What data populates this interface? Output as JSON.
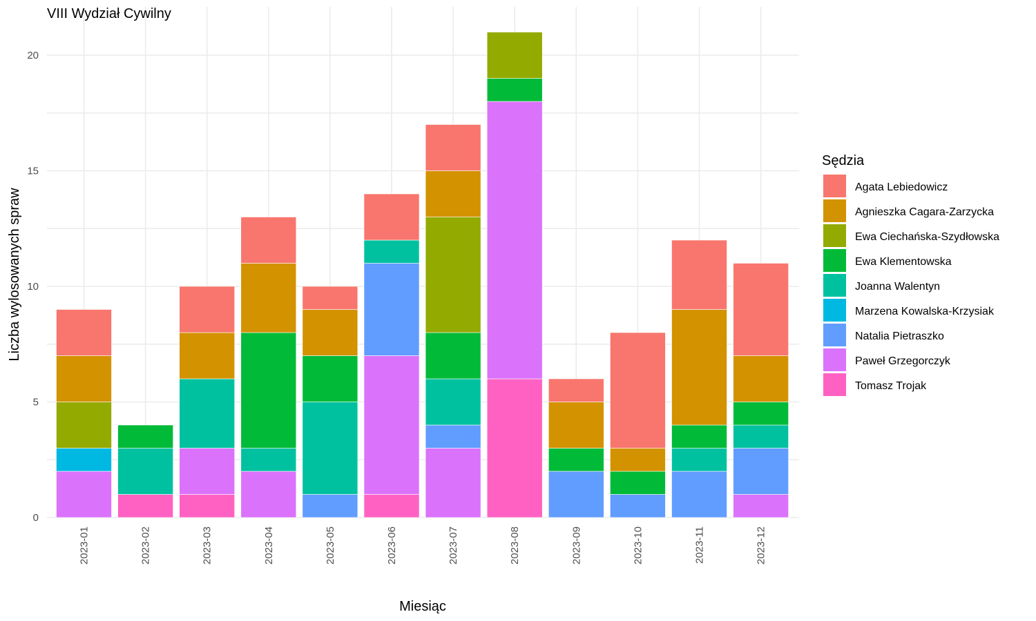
{
  "chart_data": {
    "type": "bar",
    "stacked": true,
    "title": "VIII Wydział Cywilny",
    "xlabel": "Miesiąc",
    "ylabel": "Liczba wylosowanych spraw",
    "ylim": [
      0,
      21
    ],
    "yticks": [
      0,
      5,
      10,
      15,
      20
    ],
    "grid": true,
    "legend": {
      "title": "Sędzia",
      "position": "right"
    },
    "categories": [
      "2023-01",
      "2023-02",
      "2023-03",
      "2023-04",
      "2023-05",
      "2023-06",
      "2023-07",
      "2023-08",
      "2023-09",
      "2023-10",
      "2023-11",
      "2023-12"
    ],
    "series": [
      {
        "name": "Agata Lebiedowicz",
        "color": "#F8766D",
        "values": [
          2,
          0,
          2,
          2,
          1,
          2,
          2,
          0,
          1,
          5,
          3,
          4
        ]
      },
      {
        "name": "Agnieszka Cagara-Zarzycka",
        "color": "#D39200",
        "values": [
          2,
          0,
          2,
          3,
          2,
          0,
          2,
          0,
          2,
          1,
          5,
          2
        ]
      },
      {
        "name": "Ewa Ciechańska-Szydłowska",
        "color": "#93AA00",
        "values": [
          2,
          0,
          0,
          0,
          0,
          0,
          5,
          2,
          0,
          0,
          0,
          0
        ]
      },
      {
        "name": "Ewa Klementowska",
        "color": "#00BA38",
        "values": [
          0,
          1,
          0,
          5,
          2,
          0,
          2,
          1,
          1,
          1,
          1,
          1
        ]
      },
      {
        "name": "Joanna Walentyn",
        "color": "#00C19F",
        "values": [
          0,
          2,
          3,
          1,
          4,
          1,
          2,
          0,
          0,
          0,
          1,
          1
        ]
      },
      {
        "name": "Marzena Kowalska-Krzysiak",
        "color": "#00B9E3",
        "values": [
          1,
          0,
          0,
          0,
          0,
          0,
          0,
          0,
          0,
          0,
          0,
          0
        ]
      },
      {
        "name": "Natalia Pietraszko",
        "color": "#619CFF",
        "values": [
          0,
          0,
          0,
          0,
          1,
          4,
          1,
          0,
          2,
          1,
          2,
          2
        ]
      },
      {
        "name": "Paweł Grzegorczyk",
        "color": "#DB72FB",
        "values": [
          2,
          0,
          2,
          2,
          0,
          6,
          3,
          12,
          0,
          0,
          0,
          1
        ]
      },
      {
        "name": "Tomasz Trojak",
        "color": "#FF61C3",
        "values": [
          0,
          1,
          1,
          0,
          0,
          1,
          0,
          6,
          0,
          0,
          0,
          0
        ]
      }
    ]
  }
}
